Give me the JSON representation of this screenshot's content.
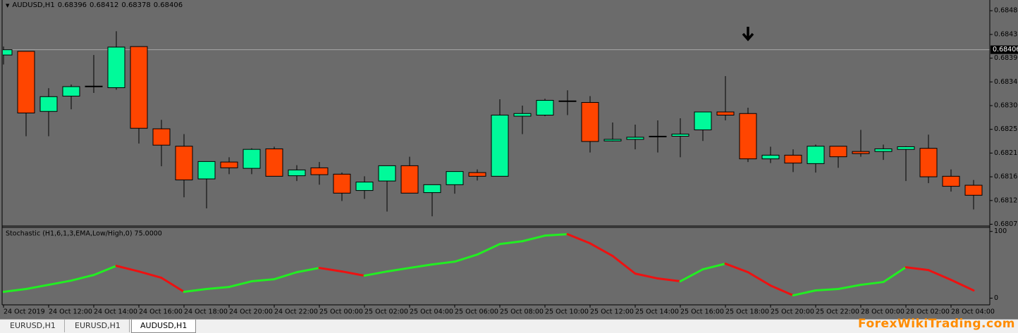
{
  "chart_data": [
    {
      "type": "candlestick",
      "title": "AUDUSD,H1",
      "open": [
        0.68396,
        0.68403,
        0.68289,
        0.68318,
        0.68336,
        0.68334,
        0.68412,
        0.68256,
        0.68223,
        0.68161,
        0.68193,
        0.68181,
        0.68218,
        0.68167,
        0.68182,
        0.6817,
        0.68139,
        0.68157,
        0.68186,
        0.68135,
        0.6815,
        0.68173,
        0.68166,
        0.6828,
        0.68282,
        0.68309,
        0.68306,
        0.68233,
        0.68236,
        0.68242,
        0.68242,
        0.68254,
        0.68288,
        0.68285,
        0.68199,
        0.68206,
        0.6819,
        0.68223,
        0.68213,
        0.68213,
        0.68217,
        0.68219,
        0.68166,
        0.68149
      ],
      "high": [
        0.68412,
        0.68403,
        0.68333,
        0.6834,
        0.68396,
        0.68441,
        0.68412,
        0.68273,
        0.68246,
        0.68194,
        0.68202,
        0.68219,
        0.68222,
        0.68187,
        0.68193,
        0.68173,
        0.68166,
        0.68186,
        0.68203,
        0.6815,
        0.68175,
        0.68179,
        0.68312,
        0.683,
        0.68313,
        0.68329,
        0.68318,
        0.68268,
        0.68264,
        0.68272,
        0.68276,
        0.68288,
        0.68356,
        0.68296,
        0.68222,
        0.68217,
        0.68226,
        0.68223,
        0.68254,
        0.68226,
        0.68223,
        0.68245,
        0.68179,
        0.68159
      ],
      "low": [
        0.68378,
        0.68242,
        0.68242,
        0.68293,
        0.68324,
        0.6833,
        0.68228,
        0.68185,
        0.68126,
        0.68105,
        0.6817,
        0.6817,
        0.68166,
        0.68157,
        0.6815,
        0.68119,
        0.68123,
        0.68099,
        0.68134,
        0.6809,
        0.68133,
        0.68158,
        0.68166,
        0.68246,
        0.6828,
        0.68282,
        0.68211,
        0.68232,
        0.68217,
        0.68211,
        0.68202,
        0.68233,
        0.68272,
        0.68193,
        0.68191,
        0.68174,
        0.68173,
        0.68182,
        0.68203,
        0.68197,
        0.68157,
        0.68153,
        0.68137,
        0.68103
      ],
      "close": [
        0.68406,
        0.68286,
        0.68317,
        0.68336,
        0.68337,
        0.68411,
        0.68257,
        0.68225,
        0.68159,
        0.68194,
        0.68182,
        0.68217,
        0.68166,
        0.68178,
        0.68169,
        0.68134,
        0.68155,
        0.68186,
        0.68134,
        0.6815,
        0.68175,
        0.68166,
        0.68282,
        0.68285,
        0.6831,
        0.68309,
        0.68232,
        0.68236,
        0.6824,
        0.68242,
        0.68246,
        0.68288,
        0.68282,
        0.68199,
        0.68206,
        0.68191,
        0.68223,
        0.68203,
        0.68209,
        0.68218,
        0.68222,
        0.68165,
        0.68147,
        0.6813
      ],
      "up_color": "#00fa9a",
      "down_color": "#ff4500",
      "ylim": [
        0.68073,
        0.68499
      ],
      "yticks": [
        {
          "value": 0.6848,
          "label": "0.68480"
        },
        0.68435,
        {
          "value": 0.6839,
          "label": "0.68390"
        },
        0.68345,
        {
          "value": 0.683,
          "label": "0.68300"
        },
        0.68255,
        {
          "value": 0.6821,
          "label": "0.68210"
        },
        0.68165,
        {
          "value": 0.6812,
          "label": "0.68120"
        },
        0.68075
      ]
    },
    {
      "type": "line",
      "title": "Stochastic (H1,6,1,3,EMA,Low/High,0) 75.0000",
      "categories": [
        "24 Oct 2019",
        null,
        "24 Oct 12:00",
        null,
        "24 Oct 14:00",
        null,
        "24 Oct 16:00",
        null,
        "24 Oct 18:00",
        null,
        "24 Oct 20:00",
        null,
        "24 Oct 22:00",
        null,
        "25 Oct 00:00",
        null,
        "25 Oct 02:00",
        null,
        "25 Oct 04:00",
        null,
        "25 Oct 06:00",
        null,
        "25 Oct 08:00",
        null,
        "25 Oct 10:00",
        null,
        "25 Oct 12:00",
        null,
        "25 Oct 14:00",
        null,
        "25 Oct 16:00",
        null,
        "25 Oct 18:00",
        null,
        "25 Oct 20:00",
        null,
        "25 Oct 22:00",
        null,
        "28 Oct 00:00",
        null,
        "28 Oct 02:00",
        null,
        "28 Oct 04:00",
        null
      ],
      "values": [
        9.5,
        13.7,
        20,
        26.3,
        34.7,
        48.4,
        40,
        30.5,
        9.5,
        13.7,
        16.8,
        25.3,
        28.4,
        38.9,
        45.3,
        40,
        33.7,
        40,
        45.3,
        50.5,
        54.7,
        65.3,
        81.1,
        85.3,
        93.7,
        95.8,
        82.1,
        63.2,
        36.8,
        29.5,
        25.3,
        43.2,
        51.6,
        38.9,
        18.9,
        4.2,
        11.6,
        13.7,
        20,
        24.2,
        46.3,
        42.1,
        27.4,
        11.6
      ],
      "up_color": "#22ee22",
      "down_color": "#ee1111",
      "ylim": [
        -10,
        106
      ],
      "yticks": [
        100,
        0
      ]
    }
  ],
  "tabs": [
    "EURUSD,H1",
    "EURUSD,H1",
    "AUDUSD,H1"
  ],
  "watermark": "ForexWikiTrading.com"
}
